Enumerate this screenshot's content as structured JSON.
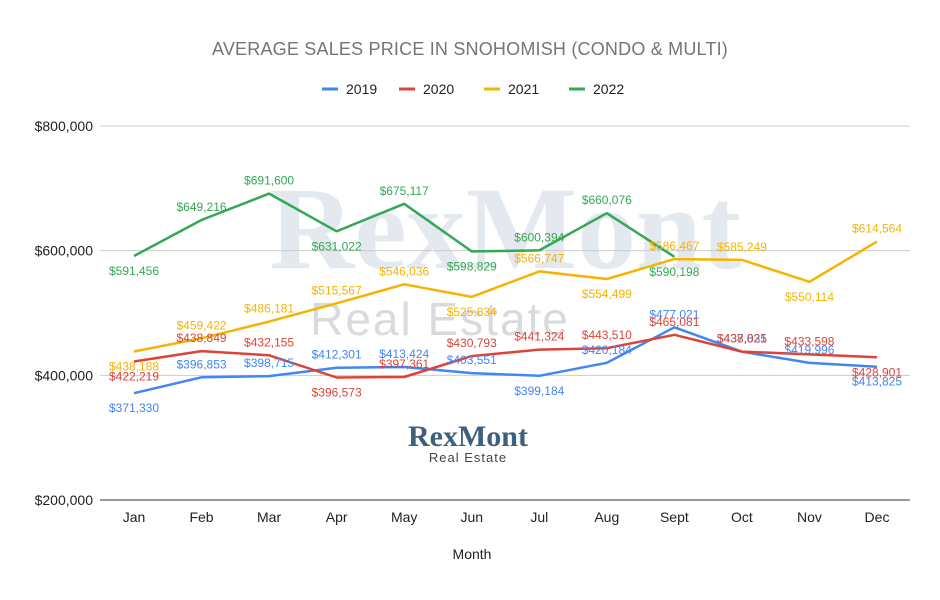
{
  "chart_data": {
    "type": "line",
    "title": "AVERAGE SALES PRICE IN SNOHOMISH (CONDO & MULTI)",
    "xlabel": "Month",
    "ylabel": "",
    "categories": [
      "Jan",
      "Feb",
      "Mar",
      "Apr",
      "May",
      "Jun",
      "Jul",
      "Aug",
      "Sept",
      "Oct",
      "Nov",
      "Dec"
    ],
    "ylim": [
      200000,
      800000
    ],
    "yticks": [
      200000,
      400000,
      600000,
      800000
    ],
    "ytick_labels": [
      "$200,000",
      "$400,000",
      "$600,000",
      "$800,000"
    ],
    "grid": true,
    "legend_position": "top",
    "series": [
      {
        "name": "2019",
        "color": "#4285f4",
        "values": [
          371330,
          396853,
          398715,
          412301,
          413424,
          403551,
          399184,
          420184,
          477021,
          437835,
          419996,
          413825
        ],
        "labels": [
          "$371,330",
          "$396,853",
          "$398,715",
          "$412,301",
          "$413,424",
          "$403,551",
          "$399,184",
          "$420,184",
          "$477,021",
          "$437,835",
          "$419,996",
          "$413,825"
        ]
      },
      {
        "name": "2020",
        "color": "#db4437",
        "values": [
          422219,
          438849,
          432155,
          396573,
          397361,
          430793,
          441324,
          443510,
          465081,
          438021,
          433598,
          428901
        ],
        "labels": [
          "$422,219",
          "$438,849",
          "$432,155",
          "$396,573",
          "$397,361",
          "$430,793",
          "$441,324",
          "$443,510",
          "$465,081",
          "$438,021",
          "$433,598",
          "$428,901"
        ]
      },
      {
        "name": "2021",
        "color": "#f4b400",
        "values": [
          438188,
          459422,
          486181,
          515567,
          546036,
          525834,
          566747,
          554499,
          586467,
          585249,
          550114,
          614564
        ],
        "labels": [
          "$438,188",
          "$459,422",
          "$486,181",
          "$515,567",
          "$546,036",
          "$525,834",
          "$566,747",
          "$554,499",
          "$586,467",
          "$585,249",
          "$550,114",
          "$614,564"
        ]
      },
      {
        "name": "2022",
        "color": "#34a853",
        "values": [
          591456,
          649216,
          691600,
          631022,
          675117,
          598829,
          600394,
          660076,
          590198,
          null,
          null,
          null
        ],
        "labels": [
          "$591,456",
          "$649,216",
          "$691,600",
          "$631,022",
          "$675,117",
          "$598,829",
          "$600,394",
          "$660,076",
          "$590,198",
          "",
          "",
          ""
        ]
      }
    ],
    "watermark": {
      "main": "RexMont",
      "sub": "Real Estate"
    },
    "logo": {
      "main": "RexMont",
      "sub": "Real Estate"
    }
  }
}
